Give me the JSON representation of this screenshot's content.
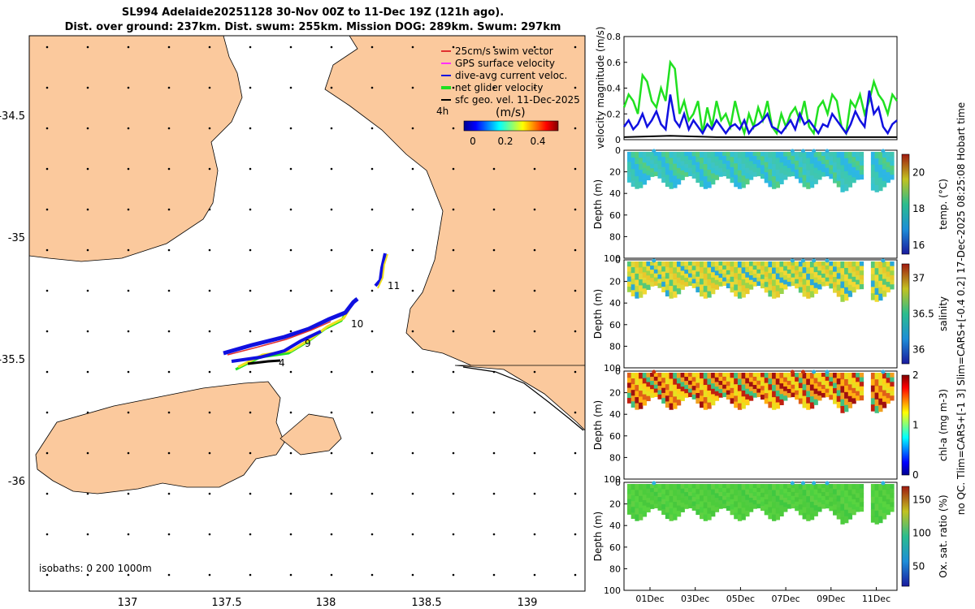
{
  "header": {
    "line1": "SL994 Adelaide20251128 30-Nov 00Z to 11-Dec 19Z (121h ago).",
    "line2": "Dist. over ground: 237km. Dist. swum: 255km. Mission DOG: 289km. Swum: 297km"
  },
  "colors": {
    "land": "#fbc99d",
    "sea": "#ffffff",
    "swim_vector": "#e03030",
    "gps_velocity": "#ff30ff",
    "dive_avg": "#1010e0",
    "net_velocity": "#20e020",
    "geo_velocity": "#000000"
  },
  "map": {
    "legend": [
      {
        "label": "25cm/s swim vector",
        "color": "#e03030"
      },
      {
        "label": "GPS surface velocity",
        "color": "#ff30ff"
      },
      {
        "label": "dive-avg current veloc.",
        "color": "#1010e0"
      },
      {
        "label": "net glider velocity",
        "color": "#20e020"
      },
      {
        "label": "sfc geo. vel. 11-Dec-2025",
        "color": "#000000"
      }
    ],
    "time_note": "4h",
    "colorbar_title": "(m/s)",
    "colorbar_ticks": [
      "0",
      "0.2",
      "0.4"
    ],
    "isobaths": "isobaths: 0   200  1000m",
    "day_labels": [
      "4",
      "9",
      "10",
      "11"
    ],
    "xticks": [
      "137",
      "137.5",
      "138",
      "138.5",
      "139"
    ],
    "yticks": [
      "-34.5",
      "-35",
      "-35.5",
      "-36"
    ]
  },
  "side_label": {
    "line1": "no QC. Tlim=CARS+[-1 3] Slim=CARS+[-0.4 0.2] 17-Dec-2025 08:25:08 Hobart time"
  },
  "chart_data": [
    {
      "type": "line",
      "title": "",
      "ylabel": "velocity magnitude (m/s)",
      "ylim": [
        0,
        0.8
      ],
      "yticks": [
        "0",
        "0.2",
        "0.4",
        "0.6",
        "0.8"
      ],
      "xlim_days": [
        0,
        11.8
      ],
      "series": [
        {
          "name": "net glider velocity",
          "color": "#20e020",
          "x": [
            0,
            0.2,
            0.4,
            0.6,
            0.8,
            1.0,
            1.2,
            1.4,
            1.6,
            1.8,
            2.0,
            2.2,
            2.4,
            2.6,
            2.8,
            3.0,
            3.2,
            3.4,
            3.6,
            3.8,
            4.0,
            4.2,
            4.4,
            4.6,
            4.8,
            5.0,
            5.2,
            5.4,
            5.6,
            5.8,
            6.0,
            6.2,
            6.4,
            6.6,
            6.8,
            7.0,
            7.2,
            7.4,
            7.6,
            7.8,
            8.0,
            8.2,
            8.4,
            8.6,
            8.8,
            9.0,
            9.2,
            9.4,
            9.6,
            9.8,
            10.0,
            10.2,
            10.4,
            10.6,
            10.8,
            11.0,
            11.2,
            11.4,
            11.6,
            11.8
          ],
          "y": [
            0.25,
            0.35,
            0.3,
            0.2,
            0.5,
            0.45,
            0.3,
            0.25,
            0.4,
            0.3,
            0.6,
            0.55,
            0.2,
            0.3,
            0.15,
            0.2,
            0.3,
            0.05,
            0.25,
            0.1,
            0.3,
            0.15,
            0.2,
            0.1,
            0.3,
            0.15,
            0.05,
            0.2,
            0.1,
            0.25,
            0.15,
            0.3,
            0.1,
            0.05,
            0.2,
            0.1,
            0.2,
            0.25,
            0.15,
            0.3,
            0.1,
            0.05,
            0.25,
            0.3,
            0.2,
            0.35,
            0.3,
            0.1,
            0.05,
            0.3,
            0.25,
            0.35,
            0.2,
            0.3,
            0.45,
            0.35,
            0.3,
            0.2,
            0.35,
            0.3
          ]
        },
        {
          "name": "dive-avg current veloc.",
          "color": "#1010e0",
          "x": [
            0,
            0.2,
            0.4,
            0.6,
            0.8,
            1.0,
            1.2,
            1.4,
            1.6,
            1.8,
            2.0,
            2.2,
            2.4,
            2.6,
            2.8,
            3.0,
            3.2,
            3.4,
            3.6,
            3.8,
            4.0,
            4.2,
            4.4,
            4.6,
            4.8,
            5.0,
            5.2,
            5.4,
            5.6,
            5.8,
            6.0,
            6.2,
            6.4,
            6.6,
            6.8,
            7.0,
            7.2,
            7.4,
            7.6,
            7.8,
            8.0,
            8.2,
            8.4,
            8.6,
            8.8,
            9.0,
            9.2,
            9.4,
            9.6,
            9.8,
            10.0,
            10.2,
            10.4,
            10.6,
            10.8,
            11.0,
            11.2,
            11.4,
            11.6,
            11.8
          ],
          "y": [
            0.1,
            0.15,
            0.08,
            0.12,
            0.2,
            0.1,
            0.15,
            0.22,
            0.12,
            0.08,
            0.35,
            0.15,
            0.1,
            0.2,
            0.08,
            0.15,
            0.1,
            0.05,
            0.12,
            0.08,
            0.15,
            0.1,
            0.05,
            0.1,
            0.12,
            0.08,
            0.15,
            0.05,
            0.1,
            0.12,
            0.15,
            0.2,
            0.1,
            0.08,
            0.05,
            0.1,
            0.15,
            0.08,
            0.2,
            0.12,
            0.15,
            0.1,
            0.05,
            0.12,
            0.1,
            0.2,
            0.15,
            0.1,
            0.05,
            0.12,
            0.22,
            0.15,
            0.1,
            0.38,
            0.2,
            0.25,
            0.1,
            0.05,
            0.12,
            0.15
          ]
        },
        {
          "name": "sfc geo. vel.",
          "color": "#000000",
          "x": [
            0,
            2,
            4,
            6,
            8,
            10,
            11.8
          ],
          "y": [
            0.02,
            0.03,
            0.02,
            0.02,
            0.02,
            0.02,
            0.02
          ]
        }
      ]
    },
    {
      "type": "heatmap",
      "ylabel": "Depth (m)",
      "variable_label": "temp. (°C)",
      "ylim": [
        0,
        100
      ],
      "yticks": [
        "0",
        "20",
        "40",
        "60",
        "80",
        "100"
      ],
      "colorbar_ticks": [
        "16",
        "18",
        "20"
      ],
      "colorbar_range": [
        15.5,
        21
      ]
    },
    {
      "type": "heatmap",
      "ylabel": "Depth (m)",
      "variable_label": "salinity",
      "ylim": [
        0,
        100
      ],
      "yticks": [
        "0",
        "20",
        "40",
        "60",
        "80",
        "100"
      ],
      "colorbar_ticks": [
        "36",
        "36.5",
        "37"
      ],
      "colorbar_range": [
        35.8,
        37.2
      ]
    },
    {
      "type": "heatmap",
      "ylabel": "Depth (m)",
      "variable_label": "chl-a (mg m-3)",
      "ylim": [
        0,
        100
      ],
      "yticks": [
        "0",
        "20",
        "40",
        "60",
        "80",
        "100"
      ],
      "colorbar_ticks": [
        "0",
        "1",
        "2"
      ],
      "colorbar_range": [
        0,
        2
      ]
    },
    {
      "type": "heatmap",
      "ylabel": "Depth (m)",
      "variable_label": "Ox. sat. ratio (%)",
      "ylim": [
        0,
        100
      ],
      "yticks": [
        "0",
        "20",
        "40",
        "60",
        "80",
        "100"
      ],
      "colorbar_ticks": [
        "50",
        "100",
        "150"
      ],
      "colorbar_range": [
        20,
        170
      ],
      "xticks": [
        "01Dec",
        "03Dec",
        "05Dec",
        "07Dec",
        "09Dec",
        "11Dec"
      ]
    }
  ]
}
